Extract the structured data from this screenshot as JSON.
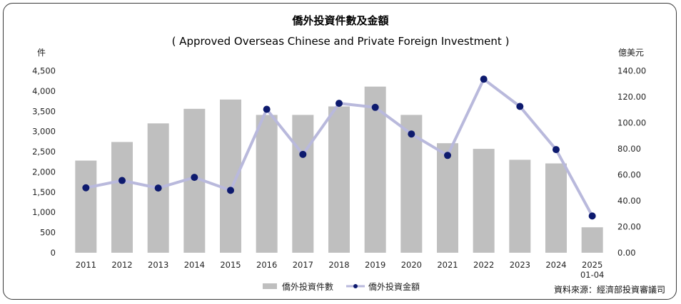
{
  "chart_data": {
    "type": "bar+line",
    "title": "僑外投資件數及金額",
    "subtitle": "( Approved Overseas Chinese and Private Foreign Investment )",
    "left_axis_unit": "件",
    "right_axis_unit": "億美元",
    "categories": [
      "2011",
      "2012",
      "2013",
      "2014",
      "2015",
      "2016",
      "2017",
      "2018",
      "2019",
      "2020",
      "2021",
      "2022",
      "2023",
      "2024",
      "2025\n01-04"
    ],
    "left_ticks": [
      "0",
      "500",
      "1,000",
      "1,500",
      "2,000",
      "2,500",
      "3,000",
      "3,500",
      "4,000",
      "4,500"
    ],
    "right_ticks": [
      "0.00",
      "20.00",
      "40.00",
      "60.00",
      "80.00",
      "100.00",
      "120.00",
      "140.00"
    ],
    "left_ylim": [
      0,
      4500
    ],
    "right_ylim": [
      0,
      140
    ],
    "grid": false,
    "legend_position": "bottom-center",
    "series": [
      {
        "name": "僑外投資件數",
        "kind": "bar",
        "axis": "left",
        "color": "#bfbfbf",
        "values": [
          2280,
          2740,
          3200,
          3560,
          3790,
          3410,
          3410,
          3620,
          4110,
          3410,
          2710,
          2570,
          2300,
          2210,
          630
        ]
      },
      {
        "name": "僑外投資金額",
        "kind": "line",
        "axis": "right",
        "line_color": "#b9b9dc",
        "marker_color": "#0d1a6e",
        "values": [
          50.0,
          55.6,
          49.8,
          58.0,
          48.0,
          110.4,
          75.7,
          115.0,
          111.9,
          91.4,
          74.9,
          133.6,
          112.6,
          79.4,
          28.3
        ]
      }
    ],
    "source_note": "資料來源：經濟部投資審議司"
  }
}
